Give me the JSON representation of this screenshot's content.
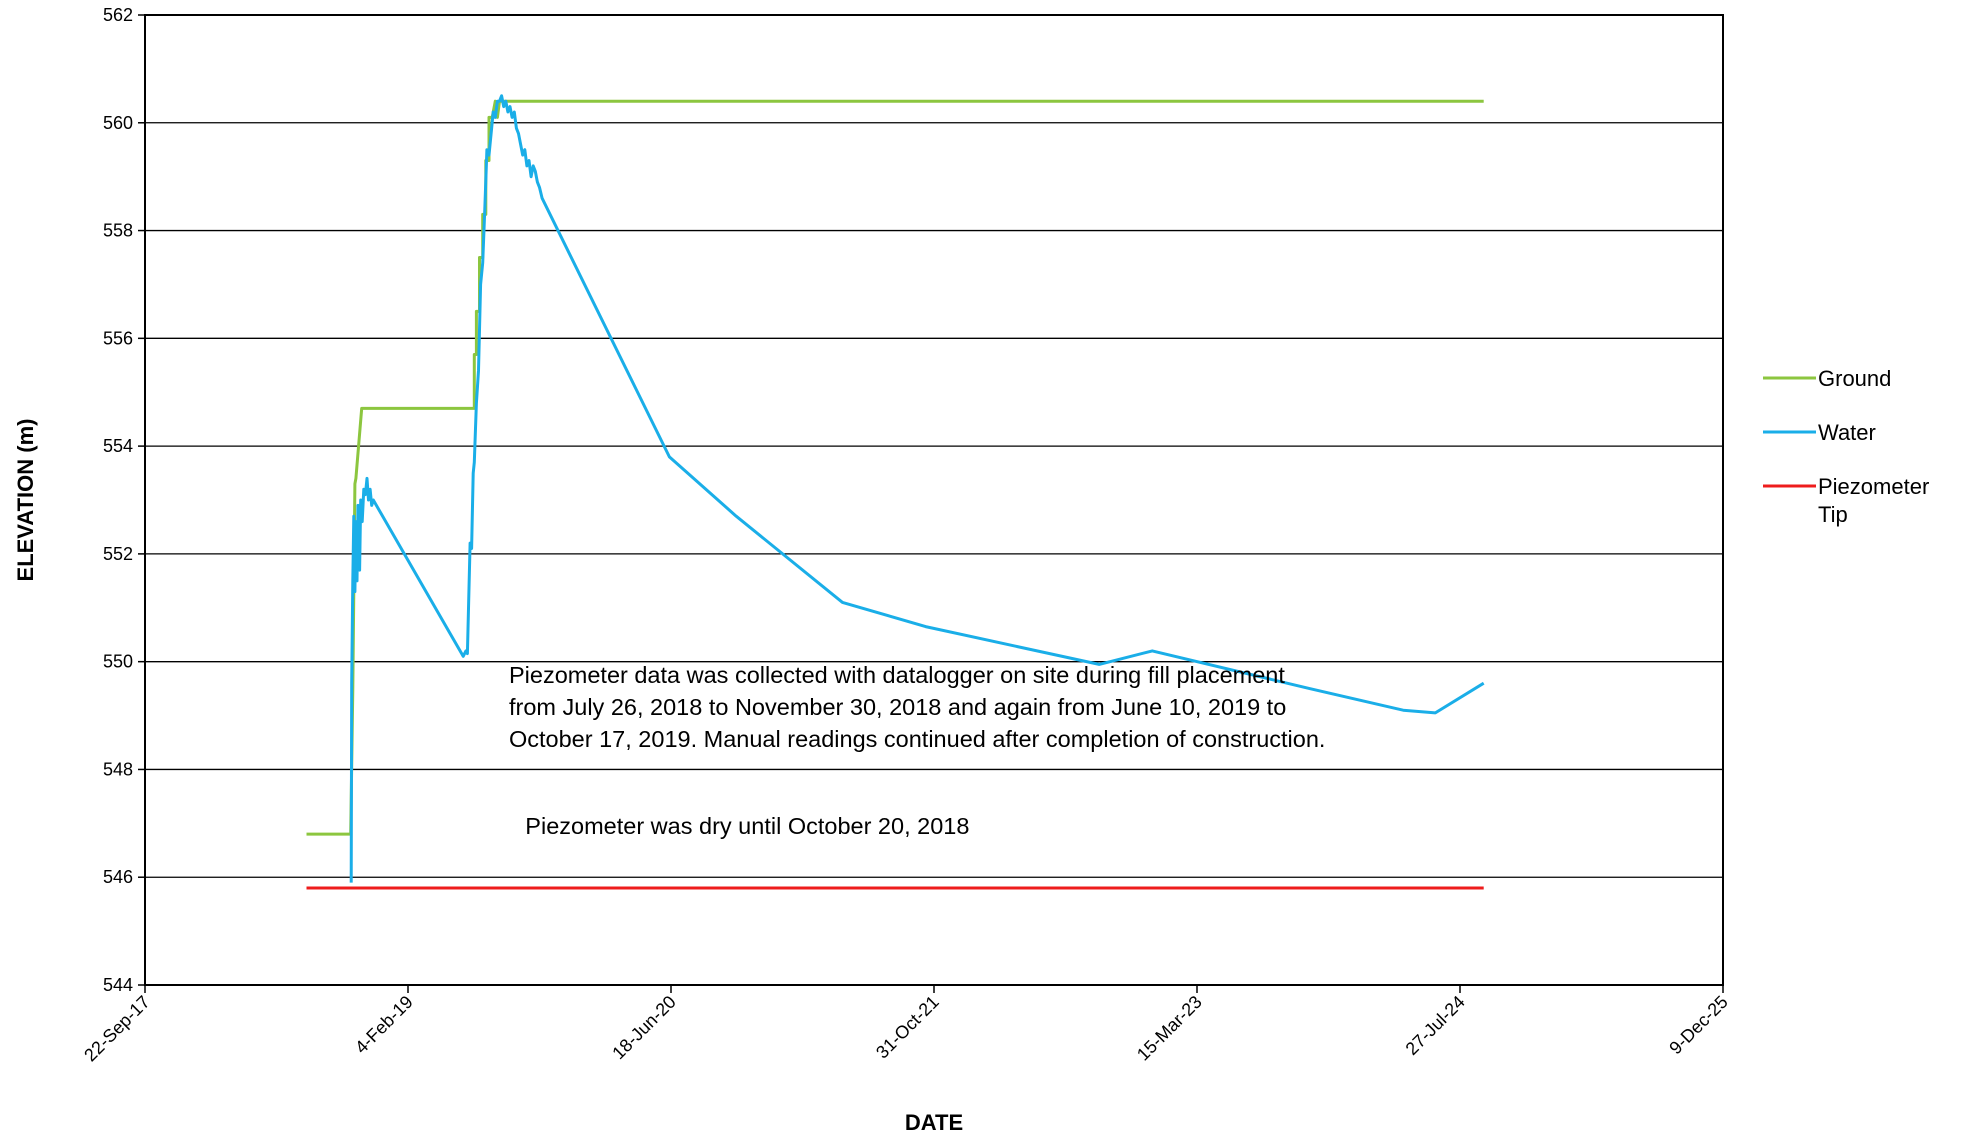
{
  "chart_data": {
    "type": "line",
    "xlabel": "DATE",
    "ylabel": "ELEVATION (m)",
    "xlim": [
      "2017-09-22",
      "2025-12-09"
    ],
    "ylim": [
      544,
      562
    ],
    "x_ticks": [
      "2017-09-22",
      "2019-02-04",
      "2020-06-18",
      "2021-10-31",
      "2023-03-15",
      "2024-07-27",
      "2025-12-09"
    ],
    "x_tick_labels": [
      "22-Sep-17",
      "4-Feb-19",
      "18-Jun-20",
      "31-Oct-21",
      "15-Mar-23",
      "27-Jul-24",
      "9-Dec-25"
    ],
    "y_ticks": [
      544,
      546,
      548,
      550,
      552,
      554,
      556,
      558,
      560,
      562
    ],
    "y_tick_labels": [
      "544",
      "546",
      "548",
      "550",
      "552",
      "554",
      "556",
      "558",
      "560",
      "562"
    ],
    "grid": "horizontal",
    "legend_position": "right",
    "series": [
      {
        "name": "Ground",
        "color": "#8cc63f",
        "x": [
          "2018-07-26",
          "2018-10-18",
          "2018-10-22",
          "2018-10-26",
          "2018-10-28",
          "2018-11-08",
          "2018-11-30",
          "2019-06-10",
          "2019-06-10",
          "2019-06-14",
          "2019-06-14",
          "2019-06-20",
          "2019-06-20",
          "2019-06-26",
          "2019-06-26",
          "2019-07-02",
          "2019-07-02",
          "2019-07-08",
          "2019-07-08",
          "2019-07-14",
          "2019-07-20",
          "2019-07-24",
          "2019-07-28",
          "2019-08-10",
          "2024-09-10"
        ],
        "y": [
          546.8,
          546.8,
          549.5,
          553.3,
          553.4,
          554.7,
          554.7,
          554.7,
          555.7,
          555.7,
          556.5,
          556.5,
          557.5,
          557.5,
          558.3,
          558.3,
          559.3,
          559.3,
          560.1,
          560.1,
          560.4,
          560.1,
          560.4,
          560.4,
          560.4
        ]
      },
      {
        "name": "Water",
        "color": "#1aaee8",
        "x": [
          "2018-10-19",
          "2018-10-20",
          "2018-10-22",
          "2018-10-24",
          "2018-10-26",
          "2018-10-28",
          "2018-10-30",
          "2018-11-01",
          "2018-11-04",
          "2018-11-06",
          "2018-11-09",
          "2018-11-12",
          "2018-11-15",
          "2018-11-18",
          "2018-11-21",
          "2018-11-24",
          "2018-11-27",
          "2018-11-30",
          "2019-05-20",
          "2019-05-25",
          "2019-05-28",
          "2019-06-02",
          "2019-06-05",
          "2019-06-08",
          "2019-06-10",
          "2019-06-14",
          "2019-06-18",
          "2019-06-22",
          "2019-06-26",
          "2019-06-30",
          "2019-07-04",
          "2019-07-08",
          "2019-07-12",
          "2019-07-16",
          "2019-07-20",
          "2019-07-24",
          "2019-07-28",
          "2019-08-01",
          "2019-08-05",
          "2019-08-09",
          "2019-08-13",
          "2019-08-17",
          "2019-08-21",
          "2019-08-25",
          "2019-08-29",
          "2019-09-02",
          "2019-09-06",
          "2019-09-10",
          "2019-09-14",
          "2019-09-18",
          "2019-09-22",
          "2019-09-26",
          "2019-09-30",
          "2019-10-04",
          "2019-10-08",
          "2019-10-12",
          "2019-10-17",
          "2020-06-15",
          "2020-10-20",
          "2021-05-10",
          "2021-10-15",
          "2022-09-10",
          "2022-12-20",
          "2023-10-15",
          "2024-04-10",
          "2024-06-10",
          "2024-09-10"
        ],
        "y": [
          545.9,
          549.6,
          551.5,
          552.7,
          551.3,
          552.6,
          551.5,
          552.9,
          551.7,
          553.0,
          552.6,
          553.2,
          553.1,
          553.4,
          553.0,
          553.2,
          552.9,
          553.0,
          550.1,
          550.2,
          550.15,
          552.2,
          552.1,
          553.5,
          553.7,
          554.8,
          555.4,
          557.0,
          557.4,
          558.4,
          559.5,
          559.4,
          559.8,
          560.2,
          560.1,
          560.4,
          560.4,
          560.5,
          560.3,
          560.4,
          560.2,
          560.3,
          560.1,
          560.2,
          559.9,
          559.8,
          559.6,
          559.4,
          559.5,
          559.2,
          559.3,
          559.0,
          559.2,
          559.1,
          558.9,
          558.8,
          558.6,
          553.8,
          552.7,
          551.1,
          550.65,
          549.95,
          550.2,
          549.5,
          549.1,
          549.05,
          549.6
        ]
      },
      {
        "name": "Piezometer\nTip",
        "color": "#ee1c1c",
        "x": [
          "2018-07-26",
          "2024-09-10"
        ],
        "y": [
          545.8,
          545.8
        ]
      }
    ],
    "annotations": [
      {
        "lines": [
          "Piezometer data was collected with datalogger on site during fill placement",
          "from July 26, 2018 to November 30, 2018 and again from June 10, 2019 to",
          "October 17, 2019. Manual readings continued after completion of construction."
        ],
        "x": "2019-08-15",
        "y": 549.6
      },
      {
        "lines": [
          "Piezometer was dry until October 20, 2018"
        ],
        "x": "2019-09-15",
        "y": 546.8
      }
    ]
  }
}
